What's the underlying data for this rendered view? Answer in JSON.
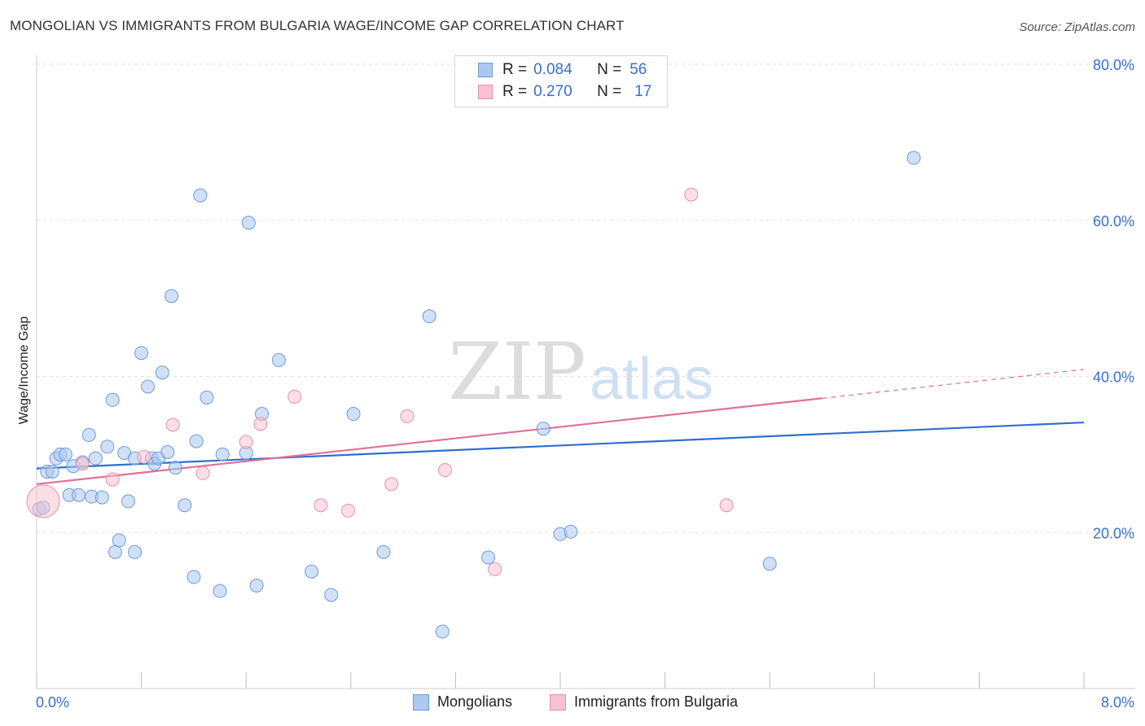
{
  "title": "MONGOLIAN VS IMMIGRANTS FROM BULGARIA WAGE/INCOME GAP CORRELATION CHART",
  "source": "Source: ZipAtlas.com",
  "legend": {
    "rows": [
      {
        "r_label": "R =",
        "r_value": "0.084",
        "n_label": "N =",
        "n_value": "56"
      },
      {
        "r_label": "R =",
        "r_value": "0.270",
        "n_label": "N =",
        "n_value": "17"
      }
    ]
  },
  "bottom_legend": {
    "series1": "Mongolians",
    "series2": "Immigrants from Bulgaria"
  },
  "watermark": {
    "part1": "ZIP",
    "part2": "atlas"
  },
  "colors": {
    "mongolians_fill": "#aac8f0",
    "mongolians_stroke": "#6f9ad8",
    "mongolians_line": "#2f6fcf",
    "bulgaria_fill": "#f8c2d2",
    "bulgaria_stroke": "#e690ae",
    "bulgaria_line": "#e0709a",
    "tick_label": "#3a6fc4"
  },
  "chart_data": {
    "type": "scatter",
    "title": "MONGOLIAN VS IMMIGRANTS FROM BULGARIA WAGE/INCOME GAP CORRELATION CHART",
    "xlabel": "",
    "ylabel": "Wage/Income Gap",
    "xlim": [
      0,
      8
    ],
    "ylim": [
      0,
      80
    ],
    "x_tick_labels": [
      "0.0%",
      "8.0%"
    ],
    "y_ticks": [
      20,
      40,
      60,
      80
    ],
    "y_tick_labels": [
      "20.0%",
      "40.0%",
      "60.0%",
      "80.0%"
    ],
    "grid": true,
    "legend_position": "top-center",
    "series": [
      {
        "name": "Mongolians",
        "r": 0.084,
        "n": 56,
        "trend": {
          "x0": 0,
          "y0": 28.2,
          "x1": 8,
          "y1": 34.1
        },
        "points": [
          [
            0.02,
            23.0
          ],
          [
            0.05,
            23.2
          ],
          [
            0.08,
            27.8
          ],
          [
            0.12,
            27.8
          ],
          [
            0.15,
            29.5
          ],
          [
            0.18,
            30.0
          ],
          [
            0.22,
            30.0
          ],
          [
            0.25,
            24.8
          ],
          [
            0.28,
            28.5
          ],
          [
            0.32,
            24.8
          ],
          [
            0.35,
            29.0
          ],
          [
            0.4,
            32.5
          ],
          [
            0.42,
            24.6
          ],
          [
            0.45,
            29.5
          ],
          [
            0.5,
            24.5
          ],
          [
            0.54,
            31.0
          ],
          [
            0.58,
            37.0
          ],
          [
            0.6,
            17.5
          ],
          [
            0.63,
            19.0
          ],
          [
            0.67,
            30.2
          ],
          [
            0.7,
            24.0
          ],
          [
            0.75,
            29.5
          ],
          [
            0.75,
            17.5
          ],
          [
            0.8,
            43.0
          ],
          [
            0.85,
            38.7
          ],
          [
            0.88,
            29.5
          ],
          [
            0.9,
            28.8
          ],
          [
            0.93,
            29.5
          ],
          [
            0.96,
            40.5
          ],
          [
            1.0,
            30.3
          ],
          [
            1.03,
            50.3
          ],
          [
            1.06,
            28.3
          ],
          [
            1.13,
            23.5
          ],
          [
            1.2,
            14.3
          ],
          [
            1.22,
            31.7
          ],
          [
            1.25,
            63.2
          ],
          [
            1.3,
            37.3
          ],
          [
            1.4,
            12.5
          ],
          [
            1.42,
            30.0
          ],
          [
            1.6,
            30.2
          ],
          [
            1.62,
            59.7
          ],
          [
            1.68,
            13.2
          ],
          [
            1.72,
            35.2
          ],
          [
            1.85,
            42.1
          ],
          [
            2.1,
            15.0
          ],
          [
            2.25,
            12.0
          ],
          [
            2.42,
            35.2
          ],
          [
            2.65,
            17.5
          ],
          [
            3.0,
            47.7
          ],
          [
            3.1,
            7.3
          ],
          [
            3.45,
            16.8
          ],
          [
            3.87,
            33.3
          ],
          [
            4.0,
            19.8
          ],
          [
            4.08,
            20.1
          ],
          [
            5.6,
            16.0
          ],
          [
            6.7,
            68.0
          ]
        ]
      },
      {
        "name": "Immigrants from Bulgaria",
        "r": 0.27,
        "n": 17,
        "trend": {
          "x0": 0,
          "y0": 26.2,
          "x1": 6.0,
          "y1": 37.2,
          "dash_to_x": 8,
          "dash_to_y": 40.9
        },
        "points": [
          [
            0.05,
            24.0
          ],
          [
            0.35,
            28.8
          ],
          [
            0.58,
            26.8
          ],
          [
            0.82,
            29.7
          ],
          [
            1.04,
            33.8
          ],
          [
            1.27,
            27.6
          ],
          [
            1.6,
            31.6
          ],
          [
            1.71,
            33.9
          ],
          [
            1.97,
            37.4
          ],
          [
            2.17,
            23.5
          ],
          [
            2.38,
            22.8
          ],
          [
            2.71,
            26.2
          ],
          [
            2.83,
            34.9
          ],
          [
            3.12,
            28.0
          ],
          [
            3.5,
            15.3
          ],
          [
            5.0,
            63.3
          ],
          [
            5.27,
            23.5
          ]
        ]
      }
    ]
  }
}
